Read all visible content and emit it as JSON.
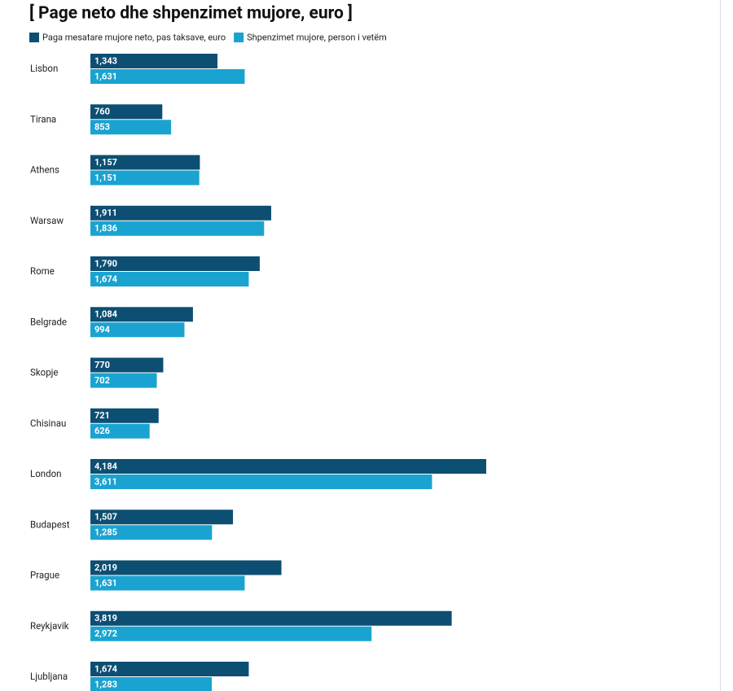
{
  "chart_data": {
    "type": "bar",
    "orientation": "horizontal",
    "title": "[ Page neto dhe shpenzimet mujore, euro ]",
    "categories": [
      "Lisbon",
      "Tirana",
      "Athens",
      "Warsaw",
      "Rome",
      "Belgrade",
      "Skopje",
      "Chisinau",
      "London",
      "Budapest",
      "Prague",
      "Reykjavik",
      "Ljubljana"
    ],
    "series": [
      {
        "name": "Paga mesatare mujore neto, pas taksave, euro",
        "color": "#0d4f73",
        "values": [
          1343,
          760,
          1157,
          1911,
          1790,
          1084,
          770,
          721,
          4184,
          1507,
          2019,
          3819,
          1674
        ],
        "value_labels": [
          "1,343",
          "760",
          "1,157",
          "1,911",
          "1,790",
          "1,084",
          "770",
          "721",
          "4,184",
          "1,507",
          "2,019",
          "3,819",
          "1,674"
        ]
      },
      {
        "name": "Shpenzimet mujore, person i vetëm",
        "color": "#1aa3d0",
        "values": [
          1631,
          853,
          1151,
          1836,
          1674,
          994,
          702,
          626,
          3611,
          1285,
          1631,
          2972,
          1283
        ],
        "value_labels": [
          "1,631",
          "853",
          "1,151",
          "1,836",
          "1,674",
          "994",
          "702",
          "626",
          "3,611",
          "1,285",
          "1,631",
          "2,972",
          "1,283"
        ]
      }
    ]
  }
}
